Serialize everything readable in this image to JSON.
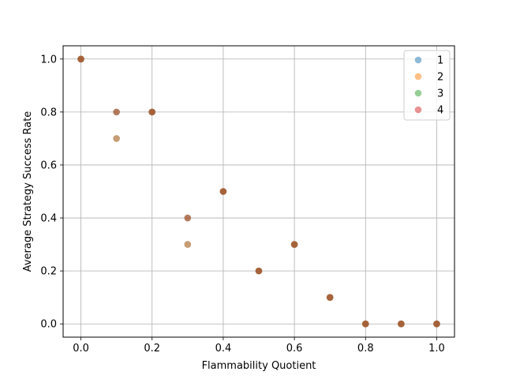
{
  "chart_data": {
    "type": "scatter",
    "title": "",
    "xlabel": "Flammability Quotient",
    "ylabel": "Average Strategy Success Rate",
    "xlim": [
      -0.05,
      1.05
    ],
    "ylim": [
      -0.05,
      1.05
    ],
    "xticks": [
      0.0,
      0.2,
      0.4,
      0.6,
      0.8,
      1.0
    ],
    "xtick_labels": [
      "0.0",
      "0.2",
      "0.4",
      "0.6",
      "0.8",
      "1.0"
    ],
    "yticks": [
      0.0,
      0.2,
      0.4,
      0.6,
      0.8,
      1.0
    ],
    "ytick_labels": [
      "0.0",
      "0.2",
      "0.4",
      "0.6",
      "0.8",
      "1.0"
    ],
    "grid": true,
    "legend_position": "top-right",
    "series": [
      {
        "name": "1",
        "color": "#1f77b4",
        "x": [
          0.0,
          0.1,
          0.2,
          0.3,
          0.4,
          0.5,
          0.6,
          0.7,
          0.8,
          0.9,
          1.0
        ],
        "y": [
          1.0,
          0.7,
          0.8,
          0.3,
          0.5,
          0.2,
          0.3,
          0.1,
          0.0,
          0.0,
          0.0
        ]
      },
      {
        "name": "2",
        "color": "#ff7f0e",
        "x": [
          0.0,
          0.1,
          0.2,
          0.3,
          0.4,
          0.5,
          0.6,
          0.7,
          0.8,
          0.9,
          1.0
        ],
        "y": [
          1.0,
          0.7,
          0.8,
          0.3,
          0.5,
          0.2,
          0.3,
          0.1,
          0.0,
          0.0,
          0.0
        ]
      },
      {
        "name": "3",
        "color": "#2ca02c",
        "x": [
          0.0,
          0.1,
          0.2,
          0.3,
          0.4,
          0.5,
          0.6,
          0.7,
          0.8,
          0.9,
          1.0
        ],
        "y": [
          1.0,
          0.8,
          0.8,
          0.4,
          0.5,
          0.2,
          0.3,
          0.1,
          0.0,
          0.0,
          0.0
        ]
      },
      {
        "name": "4",
        "color": "#d62728",
        "x": [
          0.0,
          0.1,
          0.2,
          0.3,
          0.4,
          0.5,
          0.6,
          0.7,
          0.8,
          0.9,
          1.0
        ],
        "y": [
          1.0,
          0.8,
          0.8,
          0.4,
          0.5,
          0.2,
          0.3,
          0.1,
          0.0,
          0.0,
          0.0
        ]
      }
    ]
  }
}
